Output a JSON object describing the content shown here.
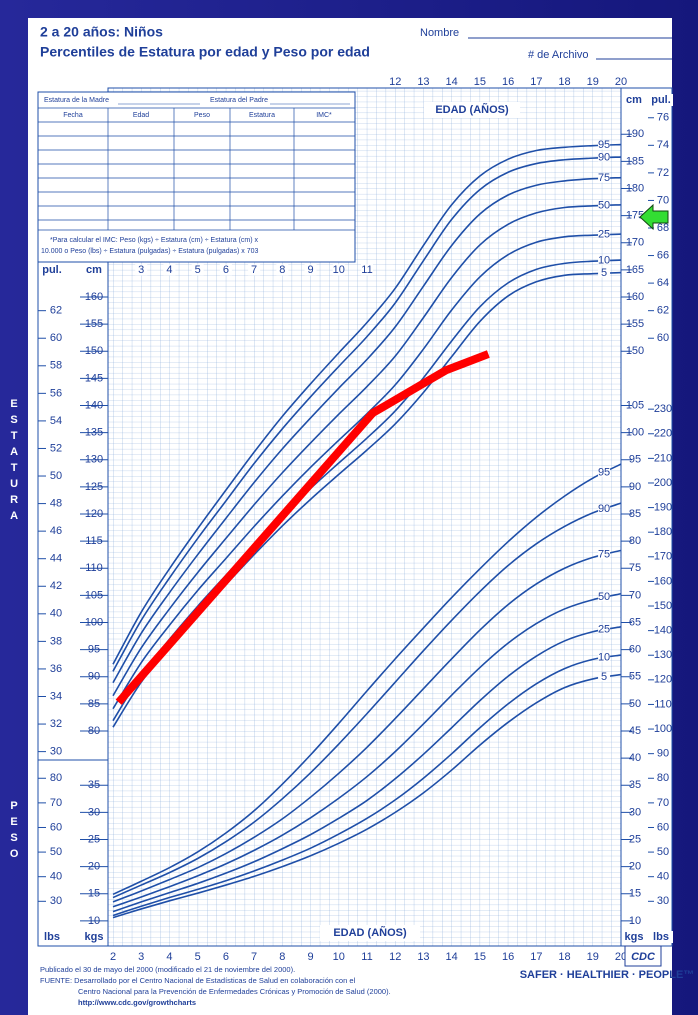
{
  "header": {
    "title": "2 a 20 años: Niños",
    "subtitle": "Percentiles de Estatura por edad y Peso por edad",
    "name_label": "Nombre",
    "file_label": "# de Archivo"
  },
  "form": {
    "mother": "Estatura de la Madre",
    "father": "Estatura del Padre",
    "columns": [
      "Fecha",
      "Edad",
      "Peso",
      "Estatura",
      "IMC*"
    ],
    "note": [
      "*Para calcular el IMC: Peso (kgs) ÷ Estatura (cm) ÷ Estatura (cm) x",
      "10.000 o Peso (lbs) ÷ Estatura (pulgadas) ÷ Estatura (pulgadas) x 703"
    ]
  },
  "footer": {
    "lines": [
      "Publicado el 30 de mayo del 2000 (modificado el 21 de noviembre del 2000).",
      "FUENTE: Desarrollado por el Centro Nacional de Estadísticas de Salud en colaboración con el",
      "Centro Nacional para la Prevención de Enfermedades Crónicas y Promoción de Salud (2000).",
      "http://www.cdc.gov/growthcharts"
    ],
    "logo": "CDC",
    "slogan": "SAFER · HEALTHIER · PEOPLE™"
  },
  "chart_data": {
    "type": "line",
    "x_label": "EDAD (AÑOS)",
    "stature_label": "ESTATURA",
    "weight_label": "PESO",
    "units": {
      "cm": "cm",
      "in": "pul.",
      "kg": "kgs",
      "lb": "lbs"
    },
    "xlim": [
      2,
      20
    ],
    "xticks": [
      2,
      3,
      4,
      5,
      6,
      7,
      8,
      9,
      10,
      11,
      12,
      13,
      14,
      15,
      16,
      17,
      18,
      19,
      20
    ],
    "ylim": [
      40,
      200
    ],
    "yticks": [
      80,
      85,
      90,
      95,
      100,
      105,
      110,
      115,
      120,
      125,
      130,
      135,
      140,
      145,
      150,
      155,
      160,
      165,
      170,
      175,
      180,
      185,
      190
    ],
    "y2lim": [
      5,
      165
    ],
    "y2ticks": [
      10,
      15,
      20,
      25,
      30,
      35,
      40,
      45,
      50,
      55,
      60,
      65,
      70,
      75,
      80,
      85,
      90,
      95,
      100,
      105
    ],
    "in_ticks": [
      30,
      32,
      34,
      36,
      38,
      40,
      42,
      44,
      46,
      48,
      50,
      52,
      54,
      56,
      58,
      60,
      62,
      64,
      66,
      68,
      70,
      72,
      74,
      76
    ],
    "lb_ticks": [
      30,
      40,
      50,
      60,
      70,
      80,
      90,
      100,
      110,
      120,
      130,
      140,
      150,
      160,
      170,
      180,
      190,
      200,
      210,
      220,
      230
    ],
    "grid": true,
    "curve_color": "#1f4fa8",
    "x": [
      2,
      3,
      4,
      5,
      6,
      7,
      8,
      9,
      10,
      11,
      12,
      13,
      14,
      15,
      16,
      17,
      18,
      19,
      20
    ],
    "series": [
      {
        "name": "95",
        "axis": "y",
        "values": [
          92.3,
          101.9,
          109.9,
          117.3,
          124.4,
          131.4,
          138.0,
          144.0,
          149.7,
          155.3,
          161.6,
          169.5,
          177.0,
          182.3,
          185.4,
          187.0,
          187.6,
          187.9,
          188.1
        ]
      },
      {
        "name": "90",
        "axis": "y",
        "values": [
          91.0,
          100.4,
          108.2,
          115.5,
          122.4,
          129.3,
          135.7,
          141.6,
          147.2,
          152.7,
          158.9,
          166.7,
          174.3,
          179.8,
          183.0,
          184.6,
          185.3,
          185.6,
          185.8
        ]
      },
      {
        "name": "75",
        "axis": "y",
        "values": [
          88.9,
          98.0,
          105.5,
          112.5,
          119.2,
          125.8,
          132.0,
          137.7,
          143.2,
          148.5,
          154.5,
          162.0,
          169.5,
          175.3,
          178.8,
          180.6,
          181.4,
          181.8,
          182.0
        ]
      },
      {
        "name": "50",
        "axis": "y",
        "values": [
          86.5,
          95.3,
          102.5,
          109.2,
          115.5,
          121.7,
          127.6,
          133.1,
          138.4,
          143.5,
          149.1,
          156.2,
          163.6,
          169.6,
          173.4,
          175.5,
          176.5,
          176.8,
          177.0
        ]
      },
      {
        "name": "25",
        "axis": "y",
        "values": [
          84.1,
          92.6,
          99.5,
          105.9,
          111.8,
          117.7,
          123.3,
          128.6,
          133.6,
          138.5,
          143.8,
          150.4,
          157.6,
          163.7,
          167.8,
          170.1,
          171.1,
          171.4,
          171.6
        ]
      },
      {
        "name": "10",
        "axis": "y",
        "values": [
          81.9,
          90.3,
          96.9,
          103.0,
          108.7,
          114.3,
          119.7,
          124.7,
          129.4,
          134.0,
          139.0,
          145.1,
          151.9,
          158.2,
          162.6,
          165.1,
          166.2,
          166.6,
          166.8
        ]
      },
      {
        "name": "5",
        "axis": "y",
        "values": [
          80.7,
          89.0,
          95.5,
          101.5,
          107.0,
          112.5,
          117.8,
          122.7,
          127.3,
          131.8,
          136.6,
          142.4,
          149.0,
          155.5,
          160.2,
          162.8,
          164.0,
          164.3,
          164.5
        ]
      },
      {
        "name": "95",
        "axis": "y2",
        "values": [
          14.9,
          17.3,
          19.8,
          22.7,
          26.2,
          30.3,
          35.2,
          40.6,
          46.4,
          52.4,
          58.3,
          64.0,
          69.6,
          74.9,
          79.9,
          84.4,
          88.3,
          91.6,
          94.2
        ]
      },
      {
        "name": "90",
        "axis": "y2",
        "values": [
          14.3,
          16.6,
          18.9,
          21.5,
          24.6,
          28.2,
          32.5,
          37.3,
          42.6,
          48.2,
          54.0,
          59.8,
          65.4,
          70.7,
          75.5,
          79.5,
          82.7,
          85.2,
          87.0
        ]
      },
      {
        "name": "75",
        "axis": "y2",
        "values": [
          13.5,
          15.5,
          17.6,
          19.8,
          22.4,
          25.4,
          28.8,
          32.8,
          37.2,
          42.0,
          47.3,
          52.8,
          58.3,
          63.6,
          68.3,
          72.1,
          75.0,
          77.0,
          78.3
        ]
      },
      {
        "name": "50",
        "axis": "y2",
        "values": [
          12.6,
          14.4,
          16.3,
          18.3,
          20.5,
          23.0,
          25.8,
          29.0,
          32.6,
          36.6,
          41.2,
          46.3,
          51.6,
          56.7,
          61.2,
          64.8,
          67.5,
          69.2,
          70.3
        ]
      },
      {
        "name": "25",
        "axis": "y2",
        "values": [
          11.7,
          13.5,
          15.2,
          16.9,
          18.8,
          20.9,
          23.3,
          25.9,
          28.9,
          32.2,
          36.2,
          40.7,
          45.6,
          50.6,
          55.1,
          58.8,
          61.6,
          63.3,
          64.2
        ]
      },
      {
        "name": "10",
        "axis": "y2",
        "values": [
          11.0,
          12.7,
          14.3,
          15.8,
          17.4,
          19.2,
          21.2,
          23.4,
          26.0,
          28.9,
          32.3,
          36.3,
          40.8,
          45.6,
          50.0,
          53.7,
          56.5,
          58.2,
          59.0
        ]
      },
      {
        "name": "5",
        "axis": "y2",
        "values": [
          10.6,
          12.2,
          13.7,
          15.1,
          16.6,
          18.2,
          20.0,
          22.0,
          24.3,
          26.9,
          30.0,
          33.6,
          37.8,
          42.4,
          46.6,
          50.2,
          53.0,
          54.6,
          55.4
        ]
      }
    ],
    "patient": {
      "color": "#ff0000",
      "axis": "y",
      "x": [
        2.2,
        11.2,
        13.8,
        15.3
      ],
      "values": [
        85.3,
        138.6,
        146.5,
        149.5
      ]
    }
  }
}
